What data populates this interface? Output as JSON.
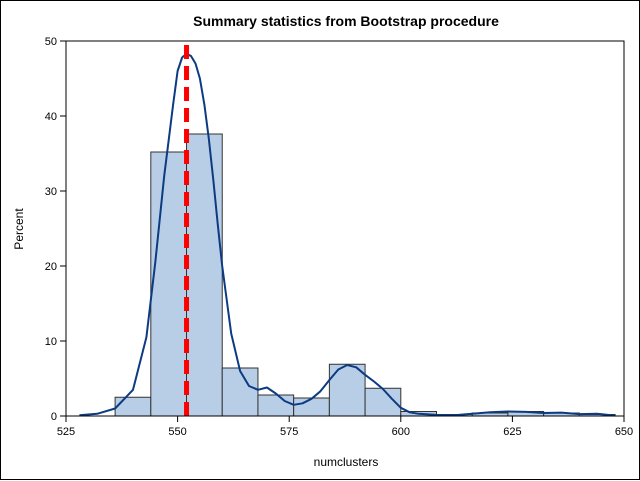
{
  "chart_data": {
    "type": "bar",
    "title": "Summary statistics from Bootstrap procedure",
    "xlabel": "numclusters",
    "ylabel": "Percent",
    "xlim": [
      525,
      650
    ],
    "ylim": [
      0,
      50
    ],
    "xticks": [
      525,
      550,
      575,
      600,
      625,
      650
    ],
    "yticks": [
      0,
      10,
      20,
      30,
      40,
      50
    ],
    "grid": false,
    "legend": "none",
    "bin_width": 8,
    "histogram": [
      {
        "x0": 536,
        "x1": 544,
        "value": 2.5
      },
      {
        "x0": 544,
        "x1": 552,
        "value": 35.2
      },
      {
        "x0": 552,
        "x1": 560,
        "value": 37.6
      },
      {
        "x0": 560,
        "x1": 568,
        "value": 6.4
      },
      {
        "x0": 568,
        "x1": 576,
        "value": 2.8
      },
      {
        "x0": 576,
        "x1": 584,
        "value": 2.4
      },
      {
        "x0": 584,
        "x1": 592,
        "value": 6.9
      },
      {
        "x0": 592,
        "x1": 600,
        "value": 3.7
      },
      {
        "x0": 600,
        "x1": 608,
        "value": 0.6
      },
      {
        "x0": 608,
        "x1": 616,
        "value": 0.2
      },
      {
        "x0": 616,
        "x1": 624,
        "value": 0.4
      },
      {
        "x0": 624,
        "x1": 632,
        "value": 0.6
      },
      {
        "x0": 632,
        "x1": 640,
        "value": 0.4
      },
      {
        "x0": 640,
        "x1": 648,
        "value": 0.2
      }
    ],
    "density_curve": {
      "x": [
        528,
        532,
        536,
        540,
        543,
        545,
        547,
        549,
        550,
        551,
        552,
        553,
        554,
        555,
        556,
        557,
        558,
        559,
        560,
        562,
        564,
        566,
        568,
        570,
        572,
        574,
        576,
        578,
        580,
        582,
        584,
        586,
        588,
        590,
        592,
        594,
        596,
        598,
        600,
        602,
        604,
        608,
        612,
        616,
        620,
        624,
        628,
        632,
        636,
        640,
        644,
        648
      ],
      "y": [
        0.1,
        0.3,
        1.0,
        3.5,
        10.5,
        20.5,
        32.0,
        41.5,
        46.0,
        47.8,
        48.3,
        48.0,
        47.0,
        45.0,
        41.5,
        37.0,
        31.5,
        25.5,
        20.0,
        11.0,
        6.0,
        4.0,
        3.5,
        3.8,
        3.0,
        2.0,
        1.5,
        1.7,
        2.3,
        3.3,
        4.8,
        6.2,
        6.8,
        6.5,
        5.5,
        4.6,
        3.6,
        2.3,
        1.1,
        0.5,
        0.3,
        0.15,
        0.1,
        0.3,
        0.5,
        0.6,
        0.55,
        0.4,
        0.45,
        0.25,
        0.3,
        0.05
      ]
    },
    "reference_line": {
      "x": 552,
      "color": "#ff0000",
      "style": "dashed"
    },
    "colors": {
      "bar_fill": "#b8cde6",
      "bar_edge": "#333333",
      "curve": "#0c3b82",
      "reference": "#ff0000"
    }
  }
}
